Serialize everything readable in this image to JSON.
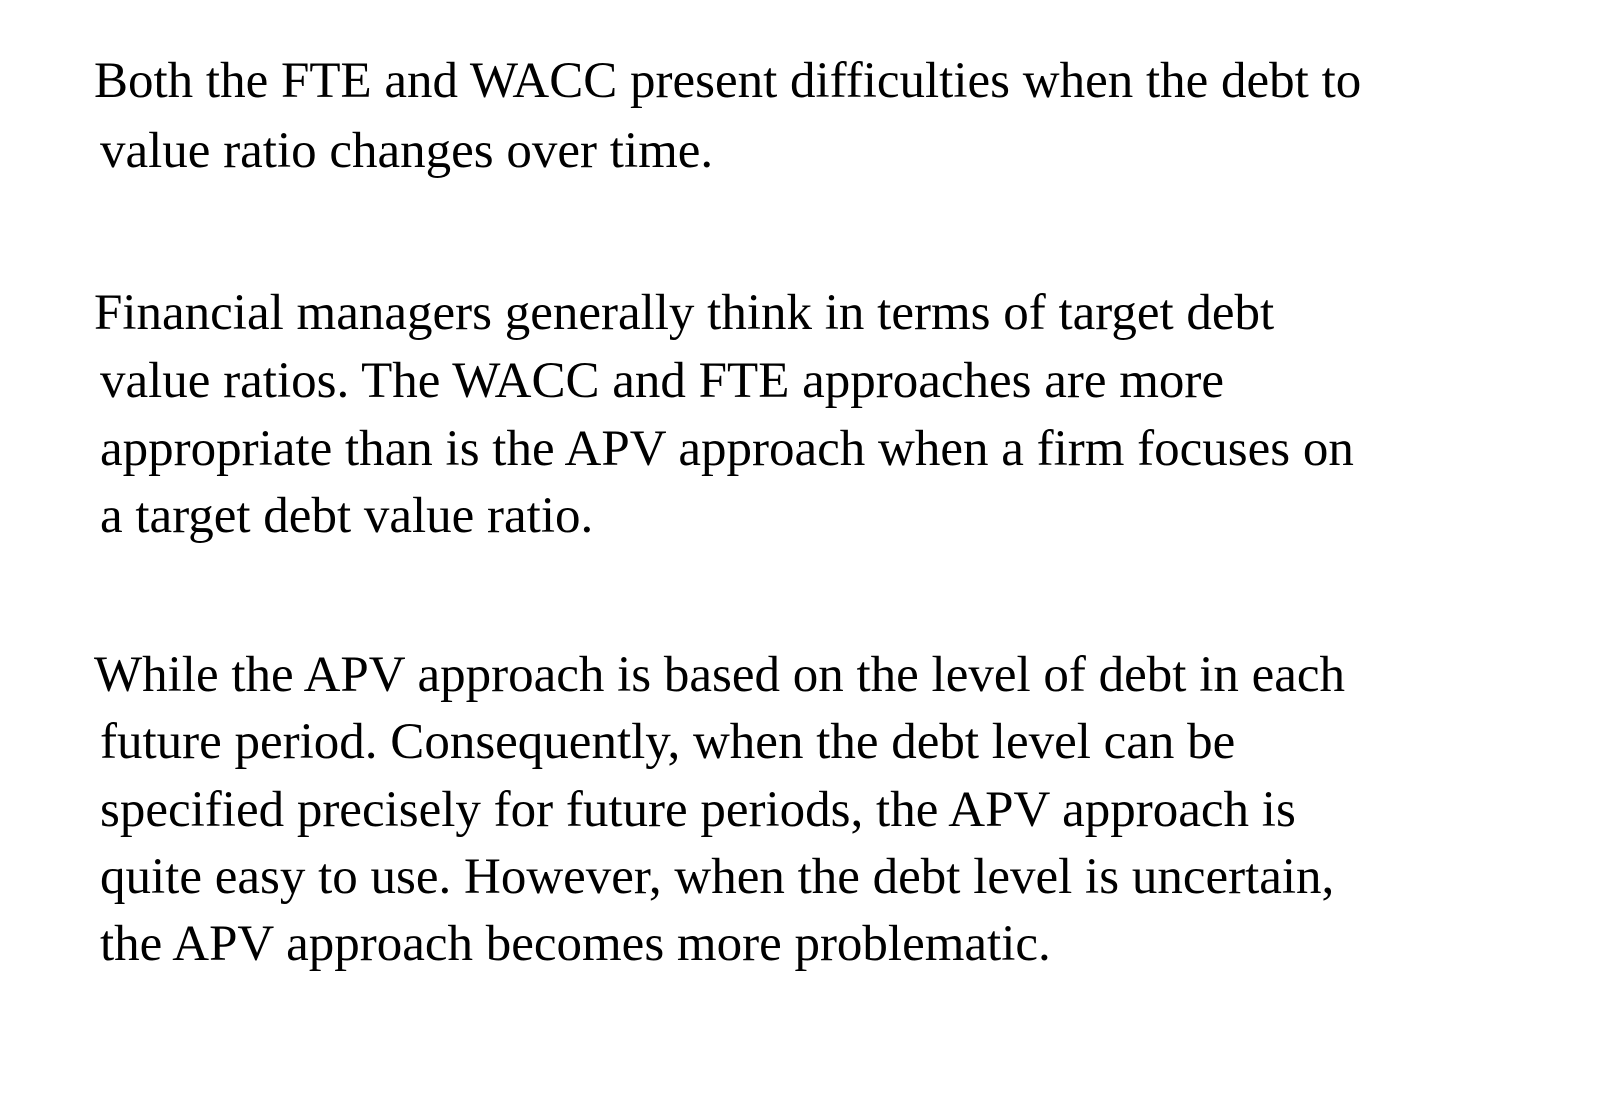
{
  "paragraphs": [
    {
      "lines": [
        "Both the FTE and WACC present difficulties when the debt to",
        "value ratio changes over time."
      ]
    },
    {
      "lines": [
        "Financial managers generally think in terms of target debt",
        "value ratios. The WACC and FTE approaches are more",
        "appropriate than is the APV approach when a firm focuses on",
        "a target debt value ratio."
      ]
    },
    {
      "lines": [
        "While the APV approach is based on the level of debt in each",
        "future period. Consequently, when the debt level can be",
        "specified precisely for future periods, the APV approach is",
        "quite easy to use. However, when the debt level is uncertain,",
        "the APV approach becomes more problematic."
      ]
    }
  ]
}
